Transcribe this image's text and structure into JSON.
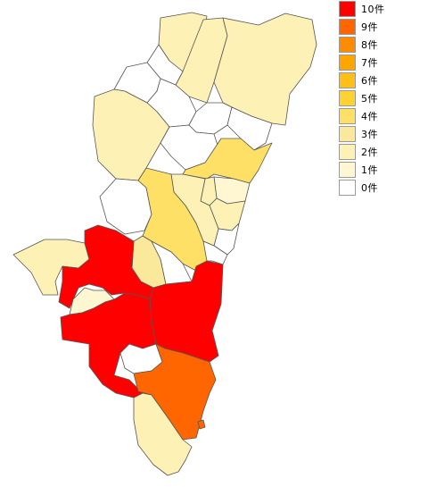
{
  "legend": [
    {
      "label": "10件",
      "color": "#ff0000"
    },
    {
      "label": "9件",
      "color": "#ff6600"
    },
    {
      "label": "8件",
      "color": "#ff8c00"
    },
    {
      "label": "7件",
      "color": "#ffa500"
    },
    {
      "label": "6件",
      "color": "#ffbf1a"
    },
    {
      "label": "5件",
      "color": "#ffd233"
    },
    {
      "label": "4件",
      "color": "#ffe066"
    },
    {
      "label": "3件",
      "color": "#fbe99b"
    },
    {
      "label": "2件",
      "color": "#fdf1b5"
    },
    {
      "label": "1件",
      "color": "#fef7d2"
    },
    {
      "label": "0件",
      "color": "#ffffff"
    }
  ],
  "regions": [
    {
      "id": "north-top",
      "count": 2
    },
    {
      "id": "north-mid",
      "count": 2
    },
    {
      "id": "north-east",
      "count": 2
    },
    {
      "id": "north-west-1",
      "count": 0
    },
    {
      "id": "north-west-2",
      "count": 0
    },
    {
      "id": "north-center",
      "count": 0
    },
    {
      "id": "north-south",
      "count": 0
    },
    {
      "id": "west-north",
      "count": 2
    },
    {
      "id": "center-north",
      "count": 0
    },
    {
      "id": "center-east",
      "count": 0
    },
    {
      "id": "hyuga",
      "count": 4
    },
    {
      "id": "mid-east-1",
      "count": 1
    },
    {
      "id": "mid-east-2",
      "count": 2
    },
    {
      "id": "mid-east-3",
      "count": 2
    },
    {
      "id": "mid-east-4",
      "count": 0
    },
    {
      "id": "mid-west",
      "count": 0
    },
    {
      "id": "mid-center-1",
      "count": 2
    },
    {
      "id": "saito",
      "count": 4
    },
    {
      "id": "mid-center-2",
      "count": 0
    },
    {
      "id": "west-far",
      "count": 2
    },
    {
      "id": "center-small",
      "count": 3
    },
    {
      "id": "center-gap",
      "count": 0
    },
    {
      "id": "sw-red",
      "count": 10
    },
    {
      "id": "miyazaki",
      "count": 10
    },
    {
      "id": "kobayashi-enclave",
      "count": 1
    },
    {
      "id": "sw-red-2",
      "count": 10
    },
    {
      "id": "sw-white",
      "count": 0
    },
    {
      "id": "nichinan",
      "count": 9
    },
    {
      "id": "kushima",
      "count": 2
    },
    {
      "id": "islet",
      "count": 9
    }
  ]
}
